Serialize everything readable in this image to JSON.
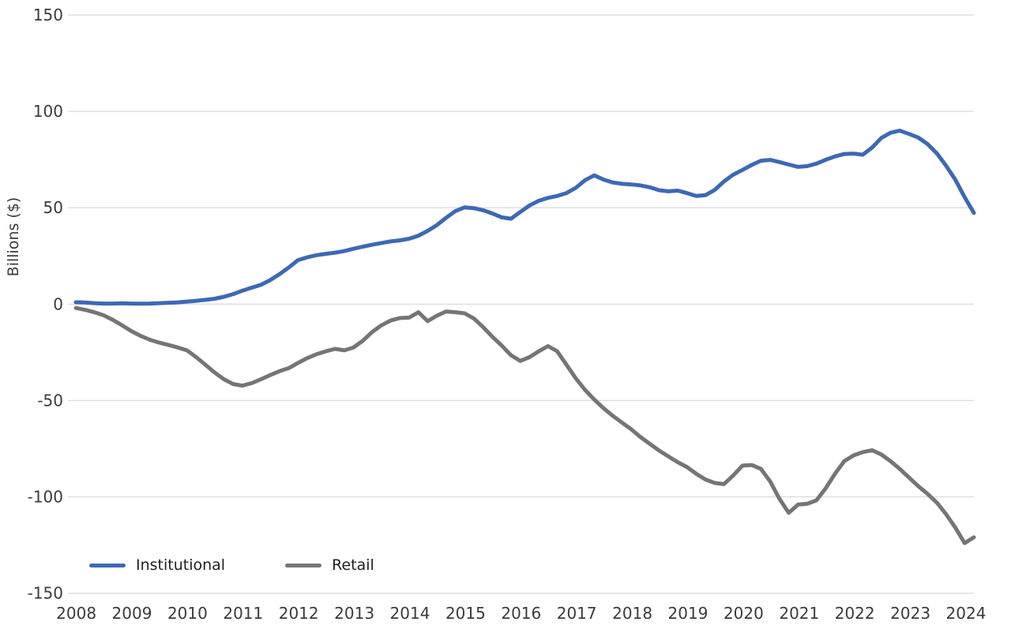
{
  "chart_data": {
    "type": "line",
    "title": "",
    "ylabel": "Billions ($)",
    "ylim": [
      -150,
      150
    ],
    "yticks": [
      "150",
      "100",
      "50",
      "0",
      "-50",
      "-100",
      "-150"
    ],
    "ytick_values": [
      150,
      100,
      50,
      0,
      -50,
      -100,
      -150
    ],
    "xticks": [
      "2008",
      "2009",
      "2010",
      "2011",
      "2012",
      "2013",
      "2014",
      "2015",
      "2016",
      "2017",
      "2018",
      "2019",
      "2020",
      "2021",
      "2022",
      "2023",
      "2024"
    ],
    "x_start_year": 2008,
    "x_end_year": 2024.17,
    "points_per_year": 6,
    "grid": true,
    "legend_position": "bottom-left-inside",
    "colors": {
      "grid": "#dbdbdb",
      "tick_text": "#3b3b3b",
      "legend_text": "#1f1f1f",
      "background": "#ffffff"
    },
    "series": [
      {
        "name": "Institutional",
        "color": "#3c69b4",
        "values": [
          1.0,
          0.8,
          0.5,
          0.3,
          0.3,
          0.4,
          0.3,
          0.2,
          0.3,
          0.5,
          0.7,
          0.9,
          1.3,
          1.7,
          2.2,
          2.8,
          3.8,
          5.2,
          7.0,
          8.5,
          10.0,
          12.5,
          15.5,
          19.0,
          22.8,
          24.3,
          25.4,
          26.1,
          26.7,
          27.5,
          28.7,
          29.8,
          30.8,
          31.7,
          32.5,
          33.1,
          33.9,
          35.5,
          38.0,
          41.0,
          44.8,
          48.3,
          50.2,
          49.8,
          48.7,
          47.0,
          45.0,
          44.3,
          47.8,
          51.2,
          53.6,
          55.1,
          56.1,
          57.6,
          60.3,
          64.3,
          66.8,
          64.6,
          63.1,
          62.4,
          62.1,
          61.6,
          60.6,
          59.1,
          58.5,
          58.9,
          57.6,
          56.1,
          56.5,
          59.2,
          63.6,
          67.1,
          69.6,
          72.2,
          74.4,
          74.8,
          73.7,
          72.4,
          71.2,
          71.6,
          72.9,
          74.9,
          76.6,
          77.9,
          78.1,
          77.5,
          81.2,
          86.2,
          88.9,
          90.0,
          88.3,
          86.4,
          83.0,
          78.2,
          71.8,
          64.5,
          55.5,
          47.3
        ]
      },
      {
        "name": "Retail",
        "color": "#757575",
        "values": [
          -2.0,
          -3.0,
          -4.2,
          -5.8,
          -8.2,
          -11.0,
          -14.0,
          -16.5,
          -18.5,
          -20.0,
          -21.2,
          -22.5,
          -24.0,
          -27.5,
          -31.5,
          -35.5,
          -39.0,
          -41.5,
          -42.3,
          -41.0,
          -39.0,
          -36.8,
          -34.8,
          -33.2,
          -30.5,
          -28.0,
          -26.0,
          -24.5,
          -23.2,
          -24.0,
          -22.5,
          -19.0,
          -14.5,
          -11.0,
          -8.5,
          -7.2,
          -7.0,
          -4.2,
          -8.8,
          -6.0,
          -3.8,
          -4.2,
          -4.8,
          -7.5,
          -12.0,
          -17.0,
          -21.5,
          -26.5,
          -29.5,
          -27.5,
          -24.5,
          -21.8,
          -24.5,
          -31.5,
          -38.5,
          -44.5,
          -49.5,
          -54.0,
          -58.0,
          -61.5,
          -65.0,
          -69.0,
          -72.5,
          -76.0,
          -79.0,
          -82.0,
          -84.5,
          -88.0,
          -91.0,
          -92.8,
          -93.4,
          -89.0,
          -83.8,
          -83.5,
          -85.5,
          -92.0,
          -101.0,
          -108.3,
          -104.0,
          -103.6,
          -101.8,
          -95.5,
          -88.0,
          -81.5,
          -78.5,
          -76.8,
          -75.8,
          -78.0,
          -81.5,
          -85.5,
          -90.0,
          -94.5,
          -98.5,
          -103.0,
          -109.0,
          -116.0,
          -124.0,
          -121.0
        ]
      }
    ]
  }
}
